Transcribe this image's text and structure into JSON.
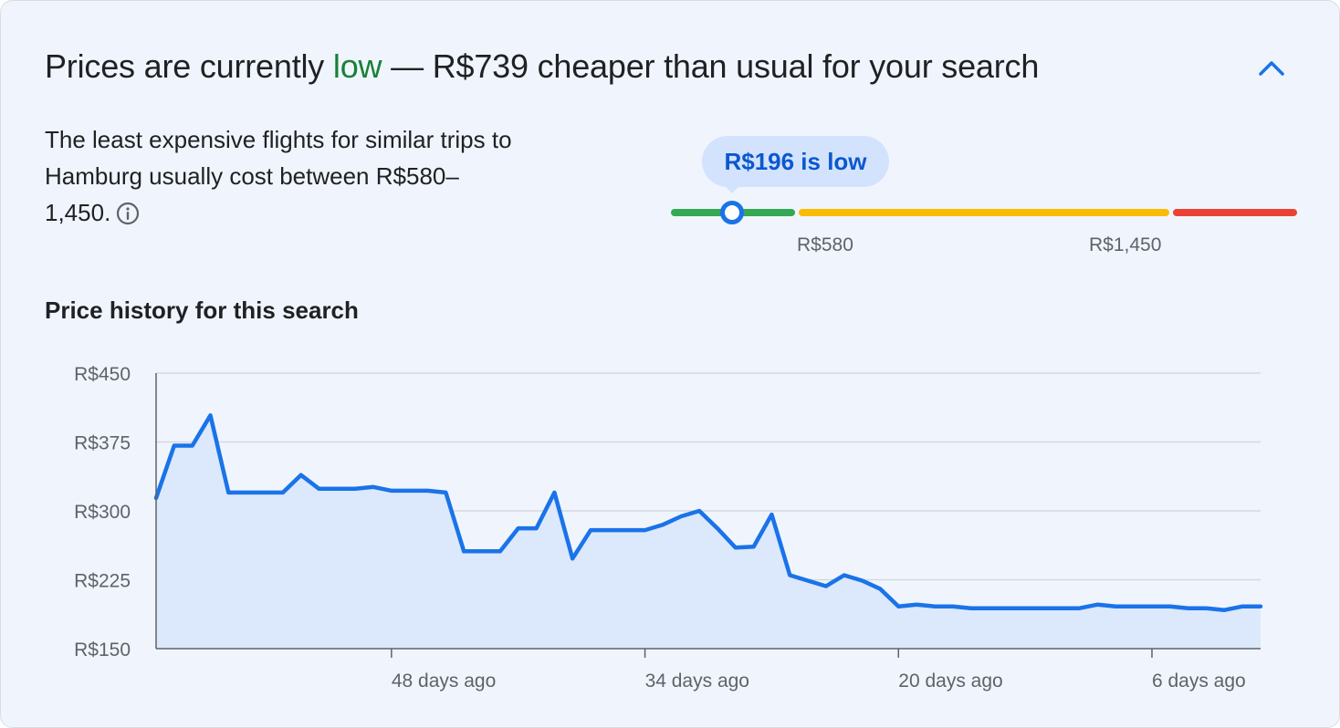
{
  "header": {
    "title_prefix": "Prices are currently ",
    "title_status": "low",
    "title_suffix": " — R$739 cheaper than usual for your search",
    "collapse_icon": "chevron-up-icon"
  },
  "description": {
    "text": "The least expensive flights for similar trips to Hamburg usually cost between R$580–1,450.",
    "info_icon": "info-icon"
  },
  "price_indicator": {
    "bubble_label": "R$196 is low",
    "low_label": "R$580",
    "high_label": "R$1,450",
    "current_price": 196,
    "typical_low": 580,
    "typical_high": 1450,
    "colors": {
      "low": "#34a853",
      "typical": "#fbbc04",
      "high": "#ea4335"
    }
  },
  "history": {
    "title": "Price history for this search"
  },
  "chart_data": {
    "type": "area",
    "title": "",
    "xlabel": "",
    "ylabel": "",
    "ylim": [
      150,
      450
    ],
    "yticks": [
      150,
      225,
      300,
      375,
      450
    ],
    "ytick_labels": [
      "R$150",
      "R$225",
      "R$300",
      "R$375",
      "R$450"
    ],
    "xticks": [
      48,
      34,
      20,
      6
    ],
    "xtick_labels": [
      "48 days ago",
      "34 days ago",
      "20 days ago",
      "6 days ago"
    ],
    "grid": true,
    "line_color": "#1a73e8",
    "fill_color": "#dce8fb",
    "series": [
      {
        "x": [
          61,
          60,
          59,
          58,
          57,
          56,
          55,
          54,
          53,
          52,
          51,
          50,
          49,
          48,
          47,
          46,
          45,
          44,
          43,
          42,
          41,
          40,
          39,
          38,
          37,
          36,
          35,
          34,
          33,
          32,
          31,
          30,
          29,
          28,
          27,
          26,
          25,
          24,
          23,
          22,
          21,
          20,
          19,
          18,
          17,
          16,
          15,
          14,
          13,
          12,
          11,
          10,
          9,
          8,
          7,
          6,
          5,
          4,
          3,
          2,
          1,
          0
        ],
        "values": [
          314,
          371,
          371,
          404,
          320,
          320,
          320,
          320,
          339,
          324,
          324,
          324,
          326,
          322,
          322,
          322,
          320,
          256,
          256,
          256,
          281,
          281,
          320,
          248,
          279,
          279,
          279,
          279,
          285,
          294,
          300,
          281,
          260,
          261,
          296,
          230,
          224,
          218,
          230,
          224,
          215,
          196,
          198,
          196,
          196,
          194,
          194,
          194,
          194,
          194,
          194,
          194,
          198,
          196,
          196,
          196,
          196,
          194,
          194,
          192,
          196,
          196
        ]
      }
    ]
  }
}
